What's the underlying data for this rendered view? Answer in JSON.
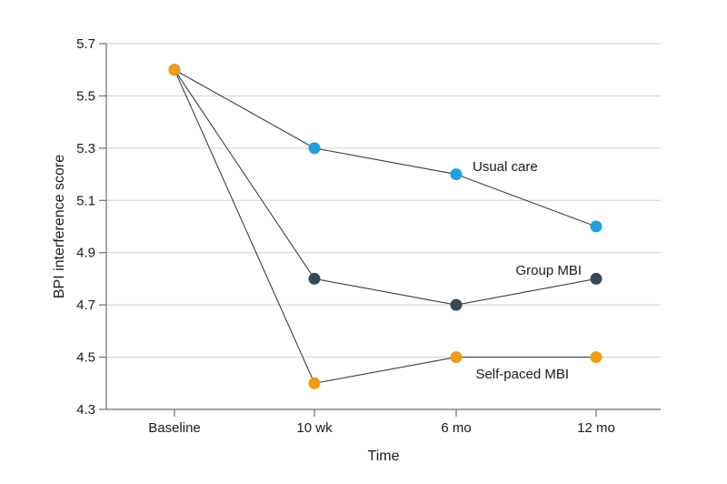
{
  "chart_data": {
    "type": "line",
    "title": "",
    "xlabel": "Time",
    "ylabel": "BPI interference score",
    "categories": [
      "Baseline",
      "10 wk",
      "6 mo",
      "12 mo"
    ],
    "ylim": [
      4.3,
      5.7
    ],
    "yticks": [
      4.3,
      4.5,
      4.7,
      4.9,
      5.1,
      5.3,
      5.5,
      5.7
    ],
    "ytick_labels": [
      "4.3",
      "4.5",
      "4.7",
      "4.9",
      "5.1",
      "5.3",
      "5.5",
      "5.7"
    ],
    "grid": true,
    "legend": "none",
    "series": [
      {
        "name": "Usual care",
        "values": [
          5.6,
          5.3,
          5.2,
          5.0
        ],
        "color": "#1aa3dd"
      },
      {
        "name": "Group MBI",
        "values": [
          5.6,
          4.8,
          4.7,
          4.8
        ],
        "color": "#34495a"
      },
      {
        "name": "Self-paced MBI",
        "values": [
          5.6,
          4.4,
          4.5,
          4.5
        ],
        "color": "#f39c12"
      }
    ]
  }
}
